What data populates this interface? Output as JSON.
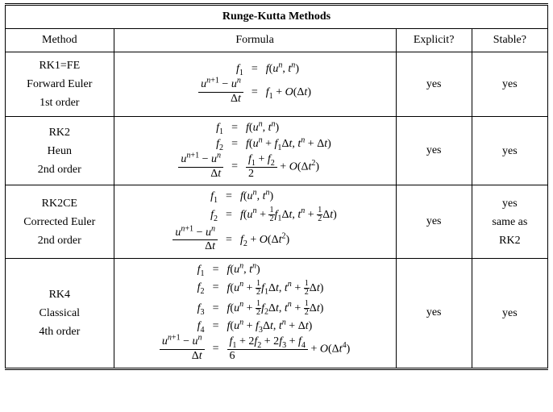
{
  "title": "Runge-Kutta Methods",
  "headers": {
    "method": "Method",
    "formula": "Formula",
    "explicit": "Explicit?",
    "stable": "Stable?"
  },
  "rows": [
    {
      "method": [
        "RK1=FE",
        "Forward Euler",
        "1st order"
      ],
      "formula": [
        {
          "lhs": "f1",
          "rhs": "f(u^n, t^n)"
        },
        {
          "lhs": "(u^{n+1}-u^n)/Δt",
          "rhs": "f1 + O(Δt)"
        }
      ],
      "explicit": "yes",
      "stable": [
        "yes"
      ]
    },
    {
      "method": [
        "RK2",
        "Heun",
        "2nd order"
      ],
      "formula": [
        {
          "lhs": "f1",
          "rhs": "f(u^n, t^n)"
        },
        {
          "lhs": "f2",
          "rhs": "f(u^n + f1Δt, t^n + Δt)"
        },
        {
          "lhs": "(u^{n+1}-u^n)/Δt",
          "rhs": "(f1+f2)/2 + O(Δt^2)"
        }
      ],
      "explicit": "yes",
      "stable": [
        "yes"
      ]
    },
    {
      "method": [
        "RK2CE",
        "Corrected Euler",
        "2nd order"
      ],
      "formula": [
        {
          "lhs": "f1",
          "rhs": "f(u^n, t^n)"
        },
        {
          "lhs": "f2",
          "rhs": "f(u^n + ½f1Δt, t^n + ½Δt)"
        },
        {
          "lhs": "(u^{n+1}-u^n)/Δt",
          "rhs": "f2 + O(Δt^2)"
        }
      ],
      "explicit": "yes",
      "stable": [
        "yes",
        "same as",
        "RK2"
      ]
    },
    {
      "method": [
        "RK4",
        "Classical",
        "4th order"
      ],
      "formula": [
        {
          "lhs": "f1",
          "rhs": "f(u^n, t^n)"
        },
        {
          "lhs": "f2",
          "rhs": "f(u^n + ½f1Δt, t^n + ½Δt)"
        },
        {
          "lhs": "f3",
          "rhs": "f(u^n + ½f2Δt, t^n + ½Δt)"
        },
        {
          "lhs": "f4",
          "rhs": "f(u^n + f3Δt, t^n + Δt)"
        },
        {
          "lhs": "(u^{n+1}-u^n)/Δt",
          "rhs": "(f1+2f2+2f3+f4)/6 + O(Δt^4)"
        }
      ],
      "explicit": "yes",
      "stable": [
        "yes"
      ]
    }
  ],
  "style": {
    "font_family": "Times New Roman",
    "title_fontsize_pt": 14,
    "cell_fontsize_pt": 14,
    "border_color": "#000000",
    "background_color": "#ffffff",
    "double_rule_top_bottom": true,
    "col_widths_pct": [
      20,
      52,
      14,
      14
    ]
  }
}
